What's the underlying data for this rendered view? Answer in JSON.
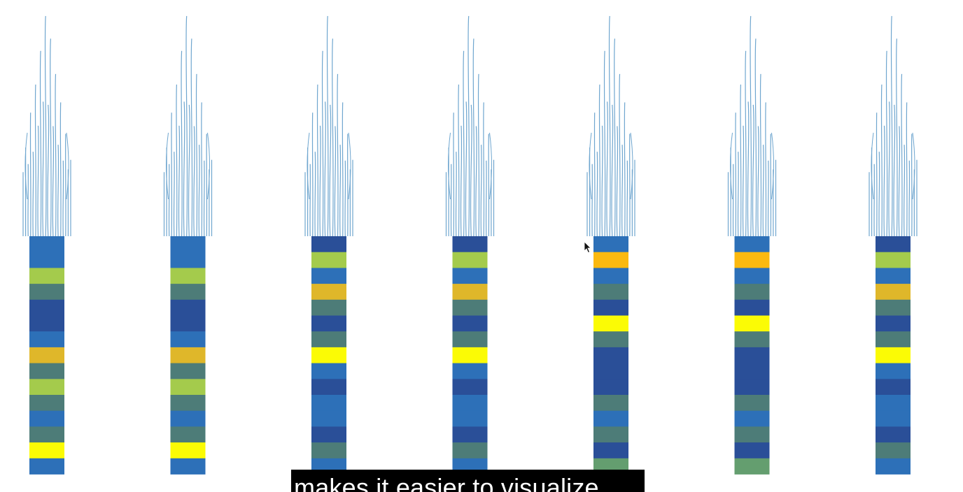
{
  "caption": {
    "text": "makes it easier to visualize"
  },
  "colors": {
    "background": "#ffffff",
    "waveform": "#6fa6cf",
    "caption_bg": "#000000",
    "caption_text": "#ffffff"
  },
  "palette": {
    "navy": "#2a4f98",
    "blue": "#2d70b8",
    "teal": "#4d7c78",
    "lime": "#a4cb4c",
    "gold": "#dfb72a",
    "orange": "#fbb910",
    "yellow": "#fbfb05",
    "green": "#649e6f"
  },
  "columns": [
    {
      "name": "column-1",
      "cells": [
        "blue",
        "blue",
        "lime",
        "teal",
        "navy",
        "navy",
        "blue",
        "gold",
        "teal",
        "lime",
        "teal",
        "blue",
        "teal",
        "yellow",
        "blue"
      ]
    },
    {
      "name": "column-2",
      "cells": [
        "blue",
        "blue",
        "lime",
        "teal",
        "navy",
        "navy",
        "blue",
        "gold",
        "teal",
        "lime",
        "teal",
        "blue",
        "teal",
        "yellow",
        "blue"
      ]
    },
    {
      "name": "column-3",
      "cells": [
        "navy",
        "lime",
        "blue",
        "gold",
        "teal",
        "navy",
        "teal",
        "yellow",
        "blue",
        "navy",
        "blue",
        "blue",
        "navy",
        "teal",
        "blue"
      ]
    },
    {
      "name": "column-4",
      "cells": [
        "navy",
        "lime",
        "blue",
        "gold",
        "teal",
        "navy",
        "teal",
        "yellow",
        "blue",
        "navy",
        "blue",
        "blue",
        "navy",
        "teal",
        "blue"
      ]
    },
    {
      "name": "column-5",
      "cells": [
        "blue",
        "orange",
        "blue",
        "teal",
        "navy",
        "yellow",
        "teal",
        "navy",
        "navy",
        "navy",
        "teal",
        "blue",
        "teal",
        "navy",
        "green"
      ]
    },
    {
      "name": "column-6",
      "cells": [
        "blue",
        "orange",
        "blue",
        "teal",
        "navy",
        "yellow",
        "teal",
        "navy",
        "navy",
        "navy",
        "teal",
        "blue",
        "teal",
        "navy",
        "green"
      ]
    },
    {
      "name": "column-7",
      "cells": [
        "navy",
        "lime",
        "blue",
        "gold",
        "teal",
        "navy",
        "teal",
        "yellow",
        "blue",
        "navy",
        "blue",
        "blue",
        "navy",
        "teal",
        "blue"
      ]
    }
  ]
}
